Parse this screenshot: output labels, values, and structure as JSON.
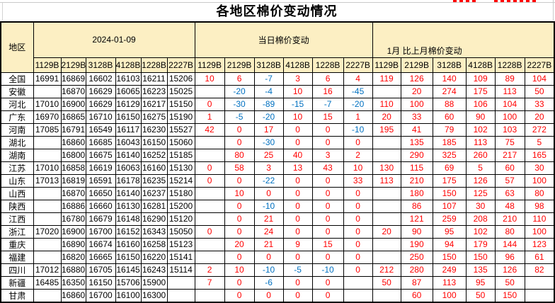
{
  "title": "各地区棉价变动情况",
  "colors": {
    "positive": "#ff0000",
    "negative": "#0070c0",
    "header_bg": "#fcefc3",
    "border": "#000000"
  },
  "header": {
    "region_label": "地区",
    "groups": [
      {
        "label": "2024-01-09"
      },
      {
        "label": "当日棉价变动"
      },
      {
        "label": "1月 比上月棉价变动"
      }
    ],
    "grade_codes": [
      "1129B",
      "2129B",
      "3128B",
      "4128B",
      "1228B",
      "2227B"
    ]
  },
  "rows": [
    {
      "region": "全国",
      "date_prices": [
        "16991",
        "16869",
        "16602",
        "16103",
        "16211",
        "15206"
      ],
      "daily_change": [
        "10",
        "6",
        "-7",
        "3",
        "6",
        "4"
      ],
      "monthly_change": [
        "119",
        "126",
        "140",
        "109",
        "89",
        "104"
      ]
    },
    {
      "region": "安徽",
      "date_prices": [
        "",
        "16870",
        "16629",
        "16065",
        "16223",
        "15025"
      ],
      "daily_change": [
        "",
        "-20",
        "-4",
        "10",
        "16",
        "-45"
      ],
      "monthly_change": [
        "",
        "20",
        "274",
        "175",
        "113",
        "50"
      ]
    },
    {
      "region": "河北",
      "date_prices": [
        "17010",
        "16900",
        "16629",
        "16129",
        "16217",
        "15150"
      ],
      "daily_change": [
        "0",
        "-30",
        "-89",
        "-15",
        "-7",
        "-20"
      ],
      "monthly_change": [
        "110",
        "100",
        "88",
        "106",
        "104",
        "33"
      ]
    },
    {
      "region": "广东",
      "date_prices": [
        "16970",
        "16865",
        "16710",
        "16150",
        "16275",
        "15190"
      ],
      "daily_change": [
        "1",
        "-5",
        "-20",
        "10",
        "15",
        "1"
      ],
      "monthly_change": [
        "20",
        "33",
        "60",
        "90",
        "100",
        "20"
      ]
    },
    {
      "region": "河南",
      "date_prices": [
        "17085",
        "16791",
        "16549",
        "16117",
        "16230",
        "15527"
      ],
      "daily_change": [
        "42",
        "0",
        "17",
        "0",
        "0",
        "-10"
      ],
      "monthly_change": [
        "195",
        "41",
        "79",
        "102",
        "103",
        "272"
      ]
    },
    {
      "region": "湖北",
      "date_prices": [
        "",
        "16860",
        "16685",
        "16043",
        "16150",
        "15060"
      ],
      "daily_change": [
        "",
        "0",
        "-30",
        "0",
        "0",
        "0"
      ],
      "monthly_change": [
        "",
        "135",
        "185",
        "113",
        "75",
        "5"
      ]
    },
    {
      "region": "湖南",
      "date_prices": [
        "",
        "16800",
        "16675",
        "16140",
        "16252",
        "15185"
      ],
      "daily_change": [
        "",
        "80",
        "25",
        "40",
        "3",
        "2"
      ],
      "monthly_change": [
        "",
        "290",
        "325",
        "260",
        "217",
        "165"
      ]
    },
    {
      "region": "江苏",
      "date_prices": [
        "17010",
        "16858",
        "16619",
        "16063",
        "16160",
        "15130"
      ],
      "daily_change": [
        "0",
        "58",
        "3",
        "13",
        "43",
        "10"
      ],
      "monthly_change": [
        "130",
        "115",
        "69",
        "5",
        "60",
        "30"
      ]
    },
    {
      "region": "山东",
      "date_prices": [
        "17013",
        "16819",
        "16591",
        "16178",
        "16235",
        "15214"
      ],
      "daily_change": [
        "0",
        "0",
        "-22",
        "0",
        "0",
        "33"
      ],
      "monthly_change": [
        "113",
        "210",
        "175",
        "126",
        "57",
        "100"
      ]
    },
    {
      "region": "山西",
      "date_prices": [
        "",
        "16870",
        "16650",
        "16140",
        "16237",
        "15180"
      ],
      "daily_change": [
        "",
        "10",
        "0",
        "0",
        "0",
        "0"
      ],
      "monthly_change": [
        "",
        "180",
        "150",
        "125",
        "63",
        "80"
      ]
    },
    {
      "region": "陕西",
      "date_prices": [
        "",
        "16886",
        "16660",
        "16130",
        "16281",
        "15200"
      ],
      "daily_change": [
        "",
        "0",
        "-10",
        "0",
        "0",
        "0"
      ],
      "monthly_change": [
        "",
        "86",
        "107",
        "30",
        "48",
        "98"
      ]
    },
    {
      "region": "江西",
      "date_prices": [
        "",
        "16780",
        "16679",
        "16148",
        "16290",
        "15120"
      ],
      "daily_change": [
        "",
        "0",
        "21",
        "0",
        "0",
        "0"
      ],
      "monthly_change": [
        "",
        "121",
        "259",
        "208",
        "210",
        "110"
      ]
    },
    {
      "region": "浙江",
      "date_prices": [
        "17020",
        "16900",
        "16700",
        "16152",
        "16343",
        "15050"
      ],
      "daily_change": [
        "0",
        "0",
        "24",
        "0",
        "0",
        "0"
      ],
      "monthly_change": [
        "20",
        "90",
        "95",
        "102",
        "80",
        "100"
      ]
    },
    {
      "region": "重庆",
      "date_prices": [
        "",
        "16890",
        "16674",
        "16160",
        "16258",
        "15123"
      ],
      "daily_change": [
        "",
        "20",
        "21",
        "9",
        "15",
        "0"
      ],
      "monthly_change": [
        "",
        "190",
        "94",
        "179",
        "144",
        "123"
      ]
    },
    {
      "region": "福建",
      "date_prices": [
        "",
        "16820",
        "16665",
        "16150",
        "16220",
        "15141"
      ],
      "daily_change": [
        "",
        "0",
        "0",
        "0",
        "0",
        "0"
      ],
      "monthly_change": [
        "",
        "250",
        "150",
        "150",
        "96",
        "61"
      ]
    },
    {
      "region": "四川",
      "date_prices": [
        "17012",
        "16880",
        "16705",
        "16145",
        "16243",
        "15114"
      ],
      "daily_change": [
        "2",
        "10",
        "-10",
        "-5",
        "-10",
        "0"
      ],
      "monthly_change": [
        "212",
        "280",
        "249",
        "135",
        "126",
        "82"
      ]
    },
    {
      "region": "新疆",
      "date_prices": [
        "16485",
        "16350",
        "16150",
        "15706",
        "15900",
        ""
      ],
      "daily_change": [
        "7",
        "0",
        "-6",
        "0",
        "0",
        ""
      ],
      "monthly_change": [
        "50",
        "87",
        "113",
        "95",
        "50",
        ""
      ]
    },
    {
      "region": "甘肃",
      "date_prices": [
        "",
        "16860",
        "16700",
        "16100",
        "16300",
        ""
      ],
      "daily_change": [
        "",
        "0",
        "0",
        "0",
        "0",
        ""
      ],
      "monthly_change": [
        "",
        "60",
        "100",
        "50",
        "150",
        ""
      ]
    }
  ]
}
